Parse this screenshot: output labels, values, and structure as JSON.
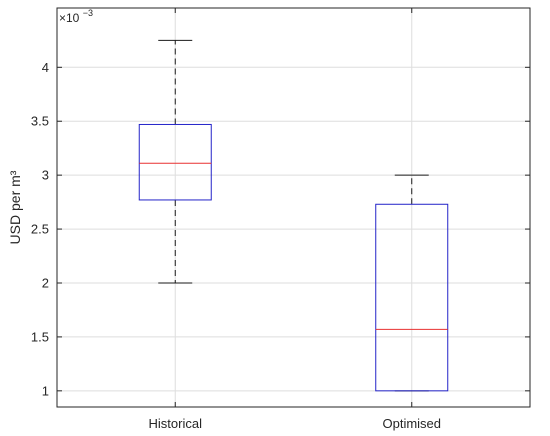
{
  "chart_data": {
    "type": "boxplot",
    "categories": [
      "Historical",
      "Optimised"
    ],
    "series": [
      {
        "category": "Historical",
        "whisker_low": 2.0,
        "q1": 2.77,
        "median": 3.11,
        "q3": 3.47,
        "whisker_high": 4.25
      },
      {
        "category": "Optimised",
        "whisker_low": 1.0,
        "q1": 1.0,
        "median": 1.57,
        "q3": 2.73,
        "whisker_high": 3.0
      }
    ],
    "title": "",
    "xlabel": "",
    "ylabel": "USD per m³",
    "y_scale_exponent": "×10",
    "y_scale_power": "−3",
    "ylim": [
      0.85,
      4.55
    ],
    "yticks": [
      1,
      1.5,
      2,
      2.5,
      3,
      3.5,
      4
    ],
    "ytick_labels": [
      "1",
      "1.5",
      "2",
      "2.5",
      "3",
      "3.5",
      "4"
    ],
    "grid": true,
    "colors": {
      "box": "#2323c8",
      "median": "#e83030",
      "whisker": "#1a1a1a",
      "grid": "#dedede",
      "axis": "#262626"
    }
  }
}
